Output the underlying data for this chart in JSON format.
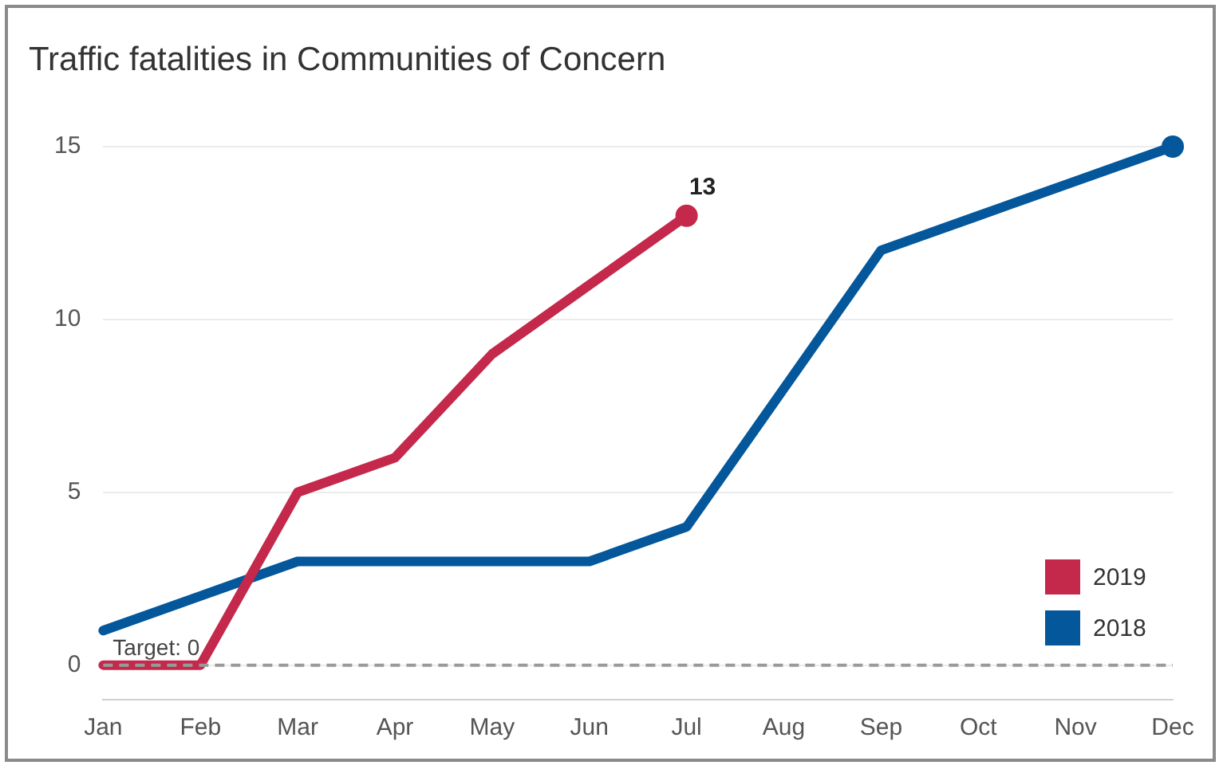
{
  "chart_data": {
    "type": "line",
    "title": "Traffic fatalities in Communities of Concern",
    "categories": [
      "Jan",
      "Feb",
      "Mar",
      "Apr",
      "May",
      "Jun",
      "Jul",
      "Aug",
      "Sep",
      "Oct",
      "Nov",
      "Dec"
    ],
    "series": [
      {
        "name": "2019",
        "color": "#c4284a",
        "values": [
          0,
          0,
          5,
          6,
          9,
          11,
          13,
          null,
          null,
          null,
          null,
          null
        ],
        "value_labels": [
          null,
          null,
          null,
          null,
          null,
          null,
          "13",
          null,
          null,
          null,
          null,
          null
        ]
      },
      {
        "name": "2018",
        "color": "#04579b",
        "values": [
          1,
          2,
          3,
          3,
          3,
          3,
          4,
          8,
          12,
          13,
          14,
          15
        ]
      }
    ],
    "ylim": [
      -1,
      15
    ],
    "yticks": [
      0,
      5,
      10,
      15
    ],
    "grid": "y",
    "legend": "bottom right",
    "ref_lines": [
      {
        "axis": "y",
        "value": 0,
        "label": "Target: 0",
        "color": "#9a9a9a",
        "line_style": "dashed"
      }
    ]
  }
}
